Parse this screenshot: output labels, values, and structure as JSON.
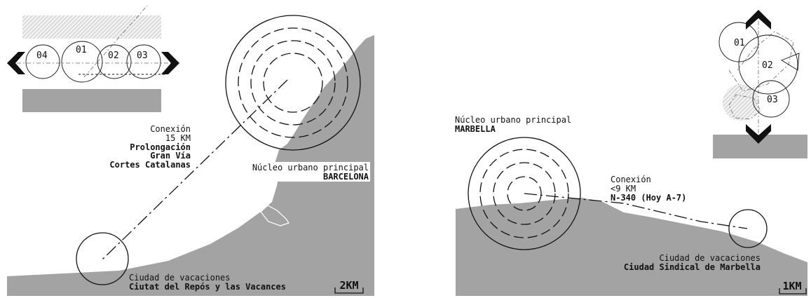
{
  "left_map": {
    "diagram_numbers": [
      "04",
      "01",
      "02",
      "03"
    ],
    "connection": {
      "title": "Conexión",
      "distance": "15 KM",
      "road_line1": "Prolongación",
      "road_line2": "Gran Vía",
      "road_line3": "Cortes Catalanas"
    },
    "urban_core": {
      "label": "Núcleo urbano principal",
      "name": "BARCELONA"
    },
    "holiday_city": {
      "label": "Ciudad de vacaciones",
      "name": "Ciutat del Repós y las Vacances"
    },
    "scale": "2KM"
  },
  "right_map": {
    "diagram_numbers": [
      "01",
      "02",
      "03"
    ],
    "urban_core": {
      "label": "Núcleo urbano principal",
      "name": "MARBELLA"
    },
    "connection": {
      "title": "Conexión",
      "distance": "<9 KM",
      "road": "N-340 (Hoy A-7)"
    },
    "holiday_city": {
      "label": "Ciudad de vacaciones",
      "name": "Ciudad Sindical de Marbella"
    },
    "scale": "1KM"
  },
  "colors": {
    "land": "#a3a3a3",
    "hatch": "#d9d9d9",
    "ink": "#111111"
  }
}
